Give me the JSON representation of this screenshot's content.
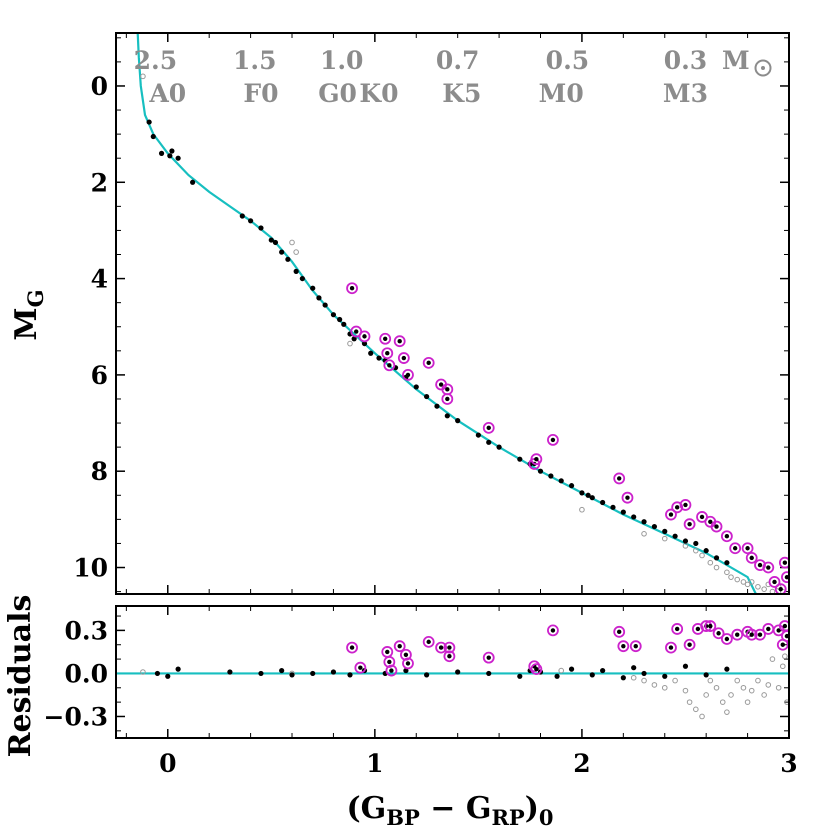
{
  "chart_data": [
    {
      "type": "scatter",
      "name": "color-magnitude-diagram",
      "xlabel_main": "(G",
      "xlabel_sub1": "BP",
      "xlabel_mid": " − G",
      "xlabel_sub2": "RP",
      "xlabel_close": ")",
      "xlabel_sub3": "0",
      "ylabel_main": "M",
      "ylabel_sub": "G",
      "xlim": [
        -0.25,
        3.0
      ],
      "ylim": [
        10.55,
        -1.1
      ],
      "xticks": [
        0,
        1,
        2,
        3
      ],
      "xtick_labels": [
        "0",
        "1",
        "2",
        "3"
      ],
      "yticks": [
        0,
        2,
        4,
        6,
        8,
        10
      ],
      "ytick_labels": [
        "0",
        "2",
        "4",
        "6",
        "8",
        "10"
      ],
      "mass_labels": [
        {
          "x": -0.06,
          "text": "2.5"
        },
        {
          "x": 0.42,
          "text": "1.5"
        },
        {
          "x": 0.84,
          "text": "1.0"
        },
        {
          "x": 1.4,
          "text": "0.7"
        },
        {
          "x": 1.93,
          "text": "0.5"
        },
        {
          "x": 2.5,
          "text": "0.3"
        }
      ],
      "mass_unit": "M",
      "spectral_labels": [
        {
          "x": 0.0,
          "text": "A0"
        },
        {
          "x": 0.45,
          "text": "F0"
        },
        {
          "x": 0.82,
          "text": "G0"
        },
        {
          "x": 1.02,
          "text": "K0"
        },
        {
          "x": 1.42,
          "text": "K5"
        },
        {
          "x": 1.9,
          "text": "M0"
        },
        {
          "x": 2.5,
          "text": "M3"
        }
      ],
      "isochrone": [
        [
          -0.145,
          -1.1
        ],
        [
          -0.14,
          -0.6
        ],
        [
          -0.13,
          0.0
        ],
        [
          -0.11,
          0.6
        ],
        [
          -0.07,
          1.0
        ],
        [
          0.0,
          1.4
        ],
        [
          0.1,
          1.85
        ],
        [
          0.2,
          2.2
        ],
        [
          0.3,
          2.5
        ],
        [
          0.4,
          2.8
        ],
        [
          0.5,
          3.15
        ],
        [
          0.6,
          3.65
        ],
        [
          0.7,
          4.25
        ],
        [
          0.8,
          4.75
        ],
        [
          0.9,
          5.15
        ],
        [
          1.0,
          5.55
        ],
        [
          1.2,
          6.3
        ],
        [
          1.4,
          6.95
        ],
        [
          1.6,
          7.5
        ],
        [
          1.8,
          8.0
        ],
        [
          2.0,
          8.45
        ],
        [
          2.2,
          8.9
        ],
        [
          2.4,
          9.3
        ],
        [
          2.6,
          9.7
        ],
        [
          2.8,
          10.2
        ],
        [
          2.84,
          10.55
        ]
      ],
      "members": [
        [
          -0.09,
          0.75
        ],
        [
          -0.07,
          1.05
        ],
        [
          -0.03,
          1.4
        ],
        [
          0.01,
          1.45
        ],
        [
          0.02,
          1.35
        ],
        [
          0.05,
          1.5
        ],
        [
          0.12,
          2.0
        ],
        [
          0.36,
          2.7
        ],
        [
          0.4,
          2.8
        ],
        [
          0.45,
          2.95
        ],
        [
          0.5,
          3.2
        ],
        [
          0.52,
          3.25
        ],
        [
          0.55,
          3.45
        ],
        [
          0.58,
          3.6
        ],
        [
          0.62,
          3.85
        ],
        [
          0.65,
          4.0
        ],
        [
          0.7,
          4.2
        ],
        [
          0.73,
          4.4
        ],
        [
          0.76,
          4.55
        ],
        [
          0.8,
          4.75
        ],
        [
          0.83,
          4.85
        ],
        [
          0.85,
          4.95
        ],
        [
          0.88,
          5.15
        ],
        [
          0.9,
          5.25
        ],
        [
          0.95,
          5.35
        ],
        [
          0.98,
          5.55
        ],
        [
          1.02,
          5.65
        ],
        [
          1.05,
          5.7
        ],
        [
          1.1,
          5.85
        ],
        [
          1.15,
          6.05
        ],
        [
          1.2,
          6.25
        ],
        [
          1.25,
          6.45
        ],
        [
          1.3,
          6.65
        ],
        [
          1.35,
          6.85
        ],
        [
          1.4,
          6.95
        ],
        [
          1.5,
          7.25
        ],
        [
          1.55,
          7.4
        ],
        [
          1.6,
          7.5
        ],
        [
          1.7,
          7.75
        ],
        [
          1.75,
          7.85
        ],
        [
          1.8,
          8.0
        ],
        [
          1.85,
          8.1
        ],
        [
          1.9,
          8.2
        ],
        [
          1.95,
          8.3
        ],
        [
          2.0,
          8.45
        ],
        [
          2.03,
          8.5
        ],
        [
          2.05,
          8.55
        ],
        [
          2.1,
          8.65
        ],
        [
          2.15,
          8.75
        ],
        [
          2.2,
          8.85
        ],
        [
          2.25,
          8.95
        ],
        [
          2.3,
          9.05
        ],
        [
          2.35,
          9.15
        ],
        [
          2.4,
          9.25
        ],
        [
          2.45,
          9.35
        ],
        [
          2.5,
          9.45
        ],
        [
          2.55,
          9.5
        ],
        [
          2.6,
          9.65
        ],
        [
          2.65,
          9.8
        ],
        [
          2.7,
          9.9
        ]
      ],
      "binaries": [
        [
          0.89,
          4.2
        ],
        [
          0.91,
          5.1
        ],
        [
          0.95,
          5.2
        ],
        [
          1.05,
          5.25
        ],
        [
          1.06,
          5.55
        ],
        [
          1.07,
          5.8
        ],
        [
          1.12,
          5.3
        ],
        [
          1.14,
          5.65
        ],
        [
          1.16,
          6.0
        ],
        [
          1.26,
          5.75
        ],
        [
          1.32,
          6.2
        ],
        [
          1.35,
          6.3
        ],
        [
          1.35,
          6.5
        ],
        [
          1.55,
          7.1
        ],
        [
          1.77,
          7.85
        ],
        [
          1.78,
          7.75
        ],
        [
          1.86,
          7.35
        ],
        [
          2.18,
          8.15
        ],
        [
          2.22,
          8.55
        ],
        [
          2.43,
          8.9
        ],
        [
          2.46,
          8.75
        ],
        [
          2.5,
          8.7
        ],
        [
          2.52,
          9.1
        ],
        [
          2.58,
          8.95
        ],
        [
          2.62,
          9.05
        ],
        [
          2.65,
          9.15
        ],
        [
          2.7,
          9.35
        ],
        [
          2.74,
          9.6
        ],
        [
          2.8,
          9.6
        ],
        [
          2.82,
          9.8
        ],
        [
          2.86,
          9.95
        ],
        [
          2.9,
          10.0
        ],
        [
          2.93,
          10.3
        ],
        [
          2.96,
          10.45
        ],
        [
          2.98,
          9.9
        ],
        [
          2.99,
          10.2
        ]
      ],
      "faint_gray": [
        [
          -0.12,
          -0.2
        ],
        [
          0.6,
          3.25
        ],
        [
          0.62,
          3.45
        ],
        [
          0.88,
          5.35
        ],
        [
          2.0,
          8.8
        ],
        [
          2.3,
          9.3
        ],
        [
          2.4,
          9.4
        ],
        [
          2.5,
          9.55
        ],
        [
          2.55,
          9.65
        ],
        [
          2.58,
          9.75
        ],
        [
          2.62,
          9.9
        ],
        [
          2.65,
          10.0
        ],
        [
          2.7,
          10.1
        ],
        [
          2.72,
          10.2
        ],
        [
          2.75,
          10.25
        ],
        [
          2.78,
          10.3
        ],
        [
          2.8,
          10.35
        ],
        [
          2.82,
          10.3
        ],
        [
          2.85,
          10.4
        ],
        [
          2.88,
          10.45
        ],
        [
          2.9,
          10.35
        ],
        [
          2.92,
          10.5
        ],
        [
          2.95,
          10.4
        ],
        [
          2.97,
          10.5
        ]
      ]
    },
    {
      "type": "scatter",
      "name": "residuals-panel",
      "ylabel": "Residuals",
      "xlim": [
        -0.25,
        3.0
      ],
      "ylim": [
        -0.45,
        0.47
      ],
      "yticks": [
        0.3,
        0.0,
        -0.3
      ],
      "ytick_labels": [
        "0.3",
        "0.0",
        "−0.3"
      ],
      "members": [
        [
          -0.05,
          0.0
        ],
        [
          0.0,
          -0.02
        ],
        [
          0.05,
          0.03
        ],
        [
          0.3,
          0.01
        ],
        [
          0.45,
          0.0
        ],
        [
          0.55,
          0.02
        ],
        [
          0.6,
          -0.01
        ],
        [
          0.7,
          0.0
        ],
        [
          0.8,
          0.01
        ],
        [
          0.88,
          -0.01
        ],
        [
          0.95,
          0.02
        ],
        [
          1.05,
          0.0
        ],
        [
          1.15,
          0.02
        ],
        [
          1.25,
          -0.01
        ],
        [
          1.4,
          0.01
        ],
        [
          1.55,
          0.0
        ],
        [
          1.7,
          -0.02
        ],
        [
          1.75,
          0.02
        ],
        [
          1.8,
          0.01
        ],
        [
          1.88,
          -0.02
        ],
        [
          1.95,
          0.03
        ],
        [
          2.05,
          -0.01
        ],
        [
          2.1,
          0.02
        ],
        [
          2.2,
          -0.03
        ],
        [
          2.25,
          0.04
        ],
        [
          2.3,
          0.0
        ],
        [
          2.4,
          -0.02
        ],
        [
          2.5,
          0.05
        ],
        [
          2.6,
          -0.01
        ],
        [
          2.7,
          0.03
        ]
      ],
      "binaries": [
        [
          0.89,
          0.18
        ],
        [
          0.93,
          0.04
        ],
        [
          1.06,
          0.15
        ],
        [
          1.07,
          0.08
        ],
        [
          1.08,
          0.02
        ],
        [
          1.12,
          0.19
        ],
        [
          1.15,
          0.13
        ],
        [
          1.16,
          0.07
        ],
        [
          1.26,
          0.22
        ],
        [
          1.32,
          0.18
        ],
        [
          1.36,
          0.18
        ],
        [
          1.36,
          0.12
        ],
        [
          1.55,
          0.11
        ],
        [
          1.77,
          0.05
        ],
        [
          1.78,
          0.03
        ],
        [
          1.86,
          0.3
        ],
        [
          2.18,
          0.29
        ],
        [
          2.2,
          0.19
        ],
        [
          2.26,
          0.19
        ],
        [
          2.43,
          0.18
        ],
        [
          2.46,
          0.31
        ],
        [
          2.52,
          0.2
        ],
        [
          2.56,
          0.31
        ],
        [
          2.6,
          0.33
        ],
        [
          2.62,
          0.33
        ],
        [
          2.66,
          0.28
        ],
        [
          2.7,
          0.24
        ],
        [
          2.75,
          0.27
        ],
        [
          2.8,
          0.29
        ],
        [
          2.82,
          0.27
        ],
        [
          2.86,
          0.27
        ],
        [
          2.9,
          0.31
        ],
        [
          2.95,
          0.3
        ],
        [
          2.98,
          0.33
        ],
        [
          2.99,
          0.26
        ],
        [
          2.97,
          0.2
        ]
      ],
      "faint_gray": [
        [
          -0.12,
          0.01
        ],
        [
          0.6,
          0.0
        ],
        [
          1.9,
          0.02
        ],
        [
          2.25,
          -0.03
        ],
        [
          2.3,
          -0.05
        ],
        [
          2.35,
          -0.08
        ],
        [
          2.4,
          -0.1
        ],
        [
          2.45,
          -0.05
        ],
        [
          2.5,
          -0.12
        ],
        [
          2.52,
          -0.2
        ],
        [
          2.55,
          -0.25
        ],
        [
          2.58,
          -0.3
        ],
        [
          2.6,
          -0.15
        ],
        [
          2.62,
          -0.05
        ],
        [
          2.65,
          -0.1
        ],
        [
          2.68,
          -0.2
        ],
        [
          2.7,
          -0.27
        ],
        [
          2.72,
          -0.15
        ],
        [
          2.75,
          -0.05
        ],
        [
          2.78,
          -0.1
        ],
        [
          2.8,
          -0.2
        ],
        [
          2.82,
          -0.12
        ],
        [
          2.85,
          -0.05
        ],
        [
          2.88,
          -0.15
        ],
        [
          2.9,
          -0.08
        ],
        [
          2.92,
          0.1
        ],
        [
          2.95,
          -0.1
        ],
        [
          2.97,
          0.05
        ],
        [
          2.99,
          -0.2
        ],
        [
          2.98,
          0.12
        ]
      ]
    }
  ]
}
